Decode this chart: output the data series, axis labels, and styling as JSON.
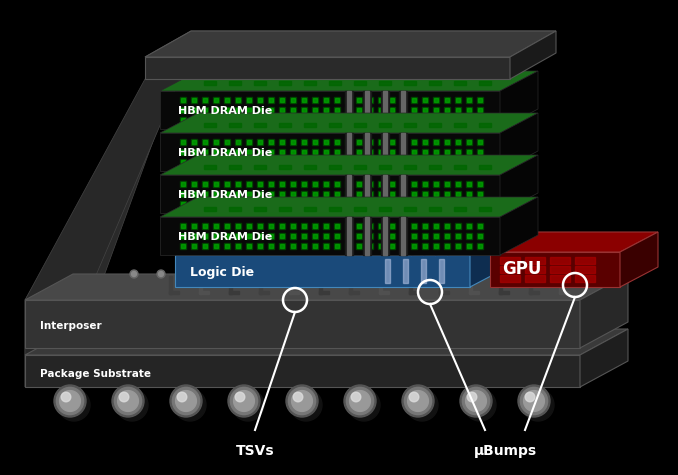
{
  "bg_color": "#000000",
  "hbm_labels": [
    "HBM DRAM Die",
    "HBM DRAM Die",
    "HBM DRAM Die",
    "HBM DRAM Die"
  ],
  "logic_die_label": "Logic Die",
  "gpu_label": "GPU",
  "interposer_label": "Interposer",
  "substrate_label": "Package Substrate",
  "tsvs_label": "TSVs",
  "ubumps_label": "μBumps",
  "hbm_green_dark": "#0a3a0a",
  "hbm_green_mid": "#1a6b1a",
  "hbm_green_bright": "#00cc00",
  "hbm_front_dark": "#050505",
  "hbm_side_dark": "#0d0d0d",
  "hbm_edge": "#222222",
  "cap_color": "#2a2a2a",
  "cap_side": "#1a1a1a",
  "cap_top": "#3a3a3a",
  "logic_top": "#2a6fa8",
  "logic_front": "#1a4a7a",
  "logic_side": "#0e2d50",
  "gpu_top": "#8b0000",
  "gpu_front": "#5a0000",
  "gpu_side": "#3a0000",
  "interposer_top": "#484848",
  "interposer_front": "#333333",
  "interposer_side": "#282828",
  "substrate_top": "#3a3a3a",
  "substrate_front": "#252525",
  "substrate_side": "#1e1e1e",
  "solder_color": "#888888",
  "solder_hi": "#cccccc",
  "text_color": "#ffffff",
  "tsv_color": "#aaaaaa",
  "trace_color": "#555555",
  "annotation_color": "#ffffff"
}
